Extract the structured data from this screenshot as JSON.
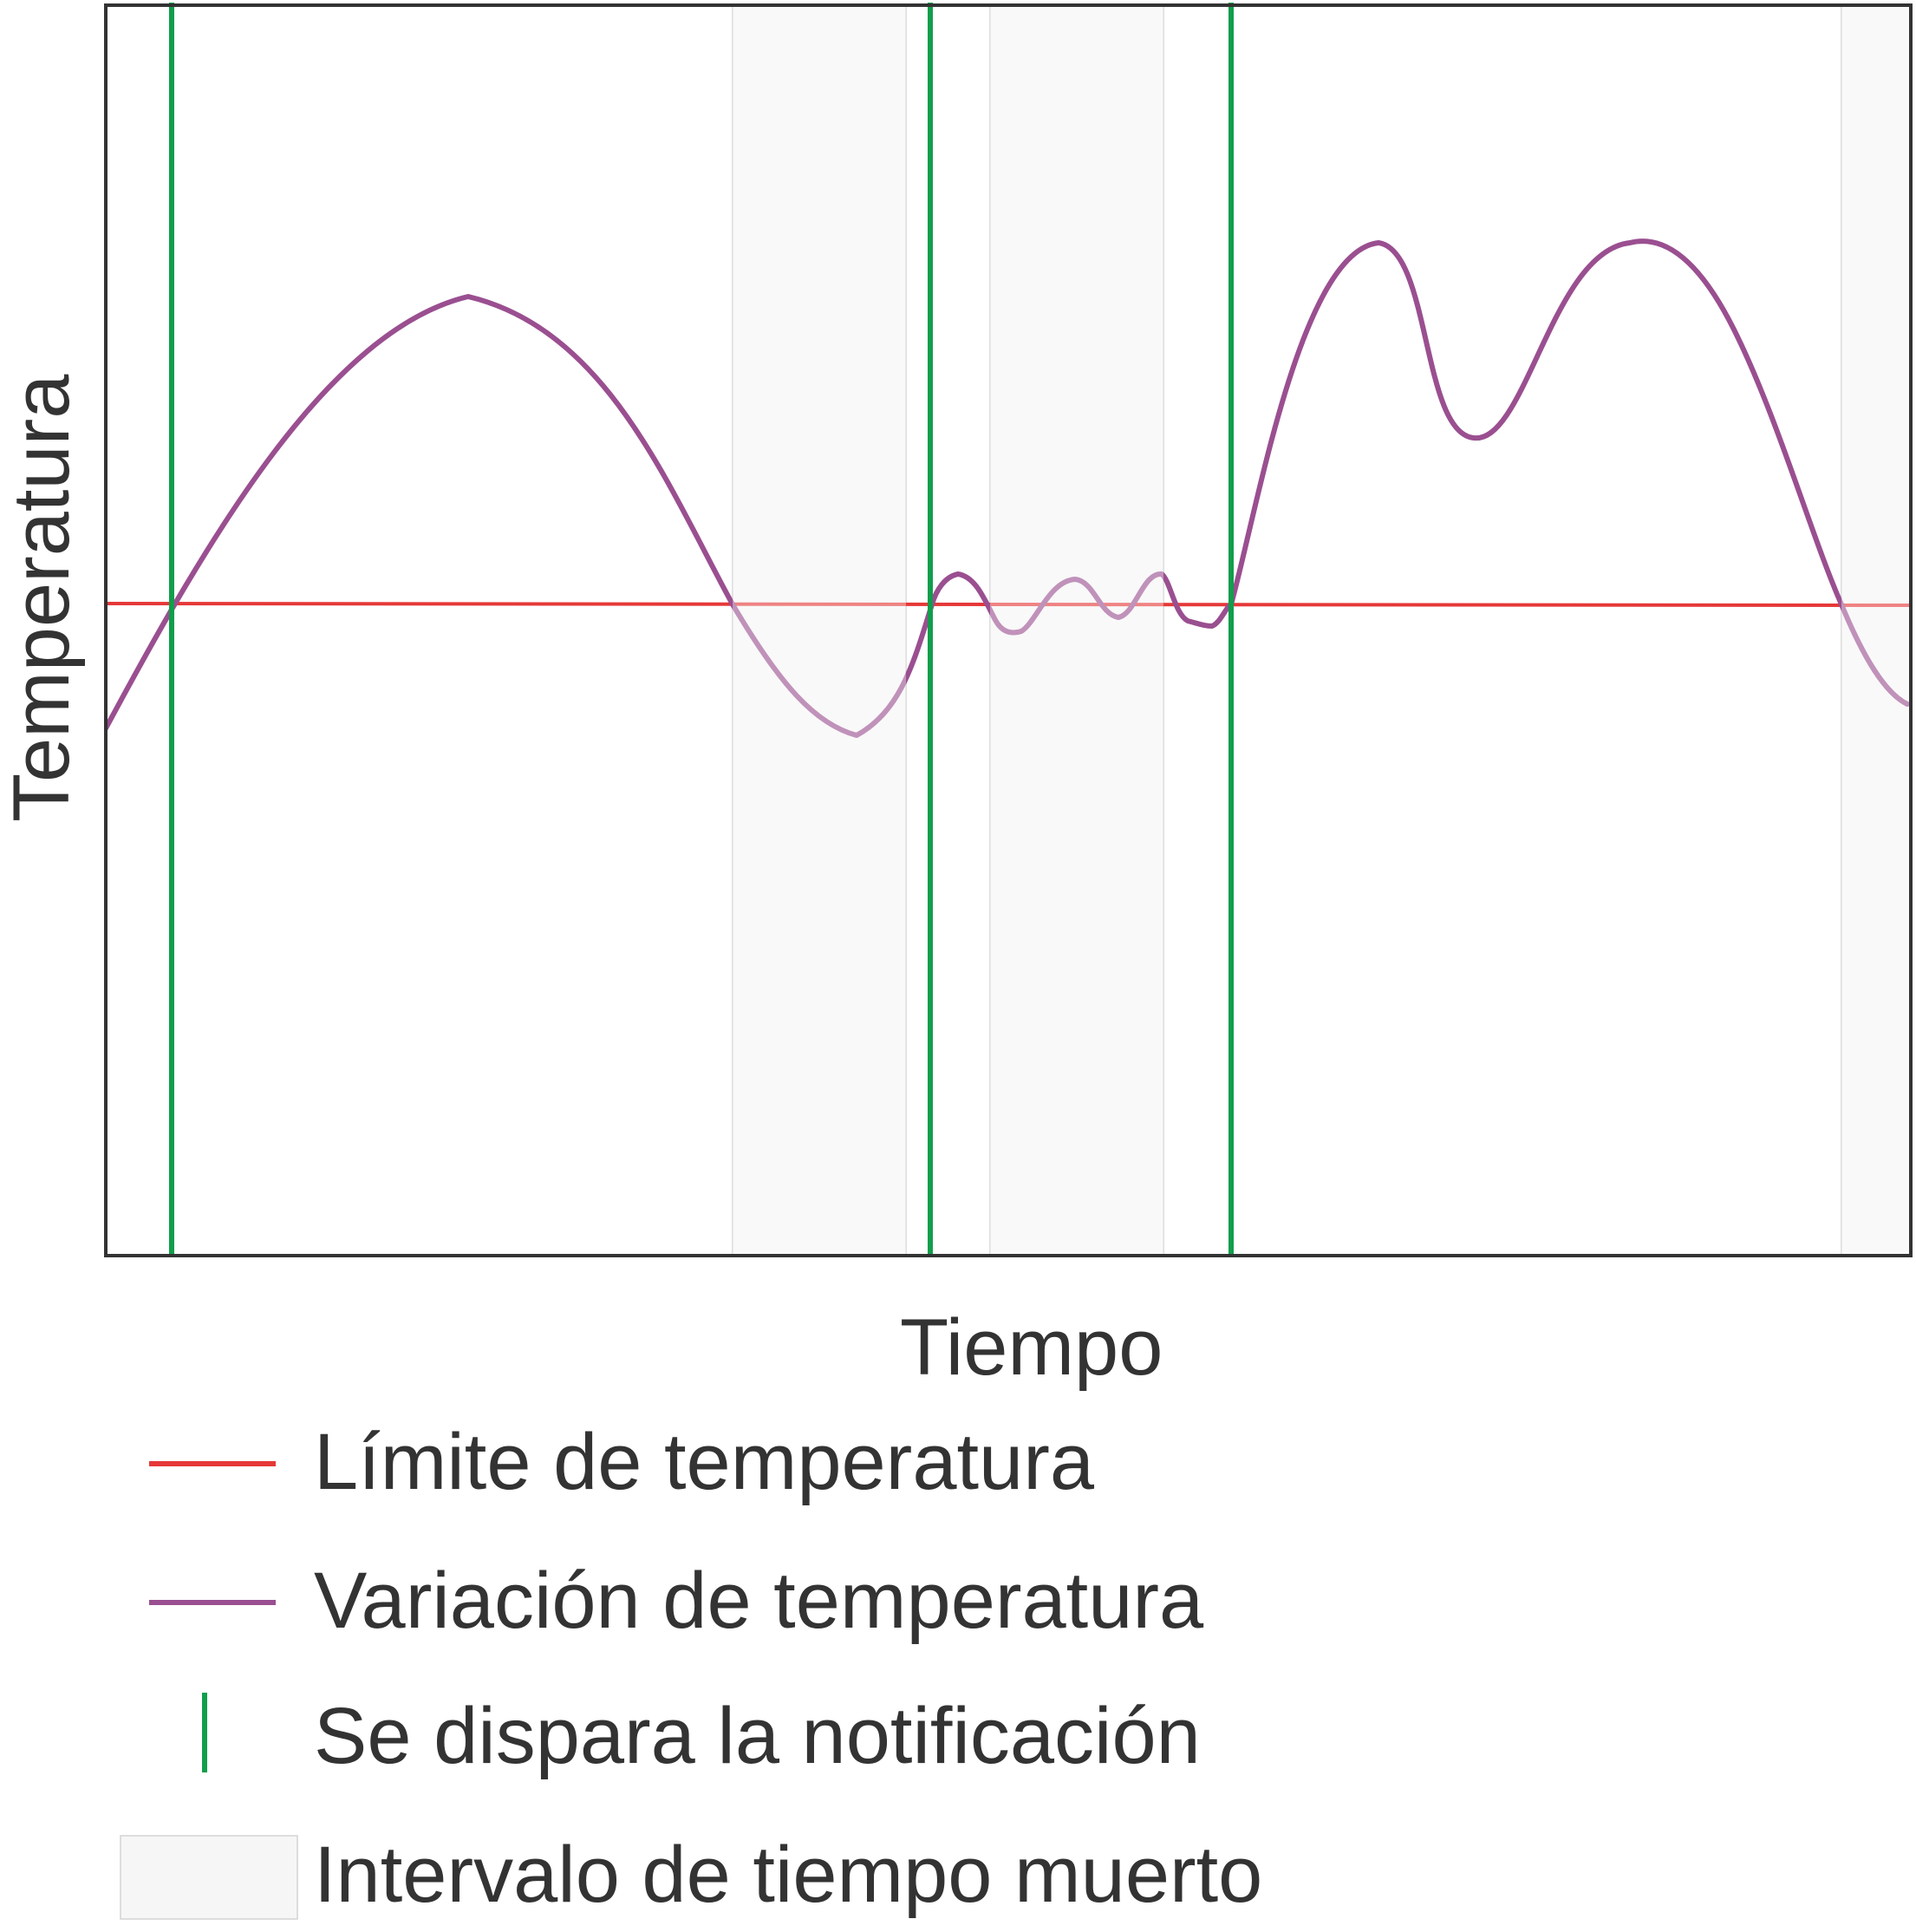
{
  "chart_data": {
    "type": "line",
    "xlabel": "Tiempo",
    "ylabel": "Temperatura",
    "x_ticks_shown": false,
    "y_ticks_shown": false,
    "grid": false,
    "legend_placement": "below",
    "colors": {
      "limit": "#e63838",
      "series": "#9a4f90",
      "notification": "#119e4b",
      "dead_time": "#f6f6f6",
      "frame": "#333333"
    },
    "legend": [
      {
        "key": "limit",
        "label": "Límite de temperatura",
        "swatch": "line"
      },
      {
        "key": "series",
        "label": "Variación de temperatura",
        "swatch": "line"
      },
      {
        "key": "notification",
        "label": "Se dispara la notificación",
        "swatch": "vline"
      },
      {
        "key": "dead_time",
        "label": "Intervalo de tiempo muerto",
        "swatch": "box"
      }
    ]
  }
}
